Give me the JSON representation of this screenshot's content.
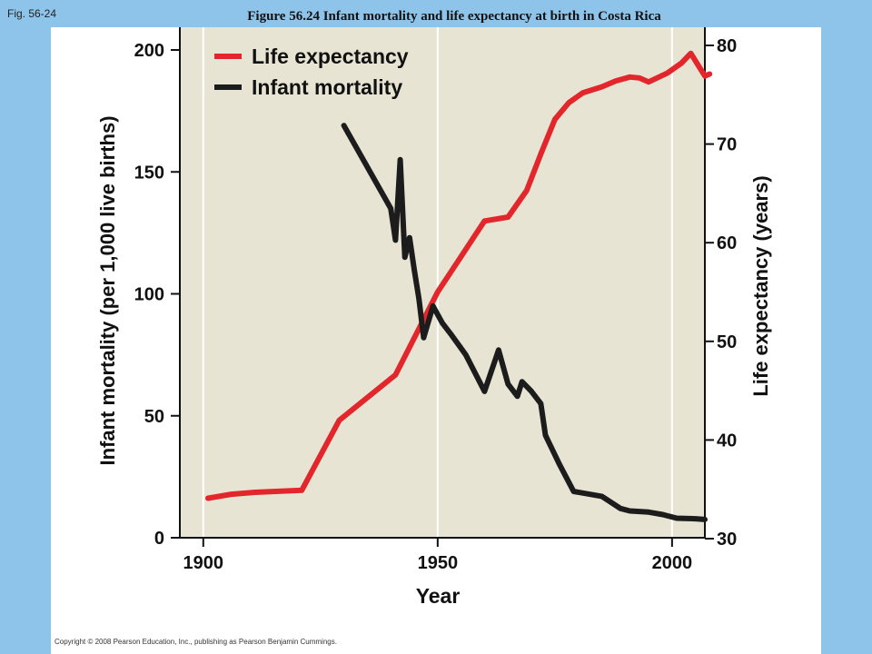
{
  "header": {
    "fig_tag": "Fig. 56-24",
    "title": "Figure 56.24 Infant mortality and life expectancy at birth in Costa Rica"
  },
  "footer": {
    "copyright": "Copyright © 2008 Pearson Education, Inc., publishing as Pearson Benjamin Cummings."
  },
  "colors": {
    "page_bg": "#8fc4ea",
    "plot_bg": "#e8e4d4",
    "life_expectancy": "#e3262b",
    "infant_mortality": "#1c1c1c"
  },
  "chart_data": {
    "type": "line",
    "xlabel": "Year",
    "ylabel": "Infant mortality (per 1,000 live births)",
    "ylabel_right": "Life expectancy (years)",
    "xlim": [
      1895,
      2007
    ],
    "ylim": [
      0,
      200
    ],
    "ylim_right": [
      30,
      80
    ],
    "x_ticks": [
      "1900",
      "1950",
      "2000"
    ],
    "y_ticks": [
      "0",
      "50",
      "100",
      "150",
      "200"
    ],
    "y_ticks_right": [
      "30",
      "40",
      "50",
      "60",
      "70",
      "80"
    ],
    "grid": "vertical lines at 1900, 1950, 2000",
    "legend_position": "top-left",
    "series": [
      {
        "name": "Life expectancy",
        "axis": "right",
        "points": [
          [
            1901,
            34.1
          ],
          [
            1906,
            34.5
          ],
          [
            1911,
            34.7
          ],
          [
            1921,
            34.9
          ],
          [
            1929,
            42.0
          ],
          [
            1941,
            46.6
          ],
          [
            1950,
            55.0
          ],
          [
            1960,
            62.2
          ],
          [
            1965,
            62.6
          ],
          [
            1969,
            65.3
          ],
          [
            1972,
            69.0
          ],
          [
            1975,
            72.5
          ],
          [
            1978,
            74.2
          ],
          [
            1981,
            75.2
          ],
          [
            1985,
            75.8
          ],
          [
            1988,
            76.4
          ],
          [
            1991,
            76.8
          ],
          [
            1993,
            76.7
          ],
          [
            1995,
            76.3
          ],
          [
            1999,
            77.2
          ],
          [
            2002,
            78.2
          ],
          [
            2004,
            79.2
          ],
          [
            2007,
            76.9
          ],
          [
            2008,
            77.1
          ]
        ]
      },
      {
        "name": "Infant mortality",
        "axis": "left",
        "points": [
          [
            1930,
            169
          ],
          [
            1940,
            135
          ],
          [
            1941,
            122
          ],
          [
            1942,
            155
          ],
          [
            1943,
            115
          ],
          [
            1944,
            123
          ],
          [
            1945,
            110
          ],
          [
            1946,
            98
          ],
          [
            1947,
            82
          ],
          [
            1949,
            95
          ],
          [
            1951,
            88
          ],
          [
            1953,
            83
          ],
          [
            1956,
            75
          ],
          [
            1960,
            60
          ],
          [
            1963,
            77
          ],
          [
            1965,
            63
          ],
          [
            1967,
            58
          ],
          [
            1968,
            64
          ],
          [
            1970,
            60
          ],
          [
            1972,
            55
          ],
          [
            1973,
            42
          ],
          [
            1974,
            38
          ],
          [
            1976,
            30
          ],
          [
            1979,
            19
          ],
          [
            1985,
            17
          ],
          [
            1989,
            12
          ],
          [
            1991,
            11
          ],
          [
            1995,
            10.5
          ],
          [
            1998,
            9.5
          ],
          [
            2001,
            8
          ],
          [
            2005,
            7.8
          ],
          [
            2007,
            7.5
          ]
        ]
      }
    ]
  }
}
